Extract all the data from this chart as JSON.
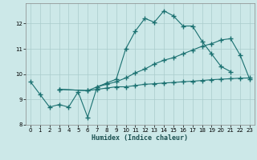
{
  "xlabel": "Humidex (Indice chaleur)",
  "bg_color": "#cce8e8",
  "line_color": "#1a7070",
  "grid_color": "#aacccc",
  "xlim": [
    -0.5,
    23.5
  ],
  "ylim": [
    8,
    12.8
  ],
  "line1_x": [
    0,
    1,
    2,
    3,
    4,
    5,
    6,
    7,
    8,
    9,
    10,
    11,
    12,
    13,
    14,
    15,
    16,
    17,
    18,
    19,
    20,
    21
  ],
  "line1_y": [
    9.7,
    9.2,
    8.7,
    8.8,
    8.7,
    9.3,
    8.3,
    9.5,
    9.65,
    9.8,
    11.0,
    11.7,
    12.2,
    12.05,
    12.5,
    12.3,
    11.9,
    11.9,
    11.3,
    10.8,
    10.3,
    10.1
  ],
  "line2_x": [
    3,
    6,
    7,
    8,
    9,
    10,
    11,
    12,
    13,
    14,
    15,
    16,
    17,
    18,
    19,
    20,
    21,
    22,
    23
  ],
  "line2_y": [
    9.4,
    9.35,
    9.5,
    9.6,
    9.7,
    9.85,
    10.05,
    10.2,
    10.4,
    10.55,
    10.65,
    10.8,
    10.95,
    11.1,
    11.2,
    11.35,
    11.4,
    10.75,
    9.8
  ],
  "line3_x": [
    3,
    6,
    7,
    8,
    9,
    10,
    11,
    12,
    13,
    14,
    15,
    16,
    17,
    18,
    19,
    20,
    21,
    22,
    23
  ],
  "line3_y": [
    9.4,
    9.35,
    9.4,
    9.45,
    9.5,
    9.5,
    9.55,
    9.6,
    9.62,
    9.65,
    9.67,
    9.7,
    9.72,
    9.75,
    9.78,
    9.8,
    9.82,
    9.84,
    9.85
  ]
}
